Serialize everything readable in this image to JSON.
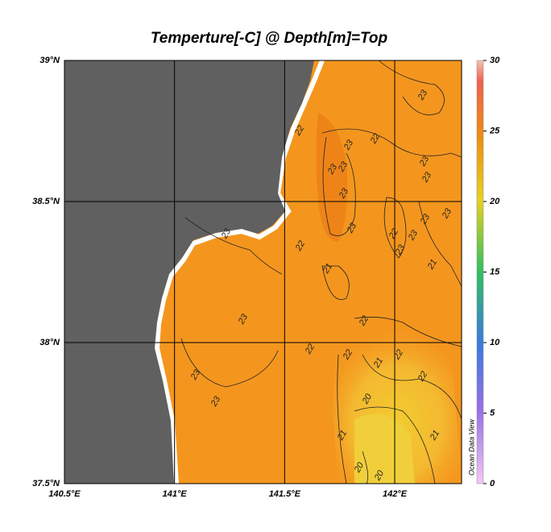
{
  "title": "Temperture[-C] @ Depth[m]=Top",
  "longitude_ticks": [
    {
      "value": 140.5,
      "label": "140.5°E"
    },
    {
      "value": 141,
      "label": "141°E"
    },
    {
      "value": 141.5,
      "label": "141.5°E"
    },
    {
      "value": 142,
      "label": "142°E"
    }
  ],
  "latitude_ticks": [
    {
      "value": 39,
      "label": "39°N"
    },
    {
      "value": 38.5,
      "label": "38.5°N"
    },
    {
      "value": 38,
      "label": "38°N"
    },
    {
      "value": 37.5,
      "label": "37.5°N"
    }
  ],
  "colorbar": {
    "range": [
      0,
      30
    ],
    "ticks": [
      0,
      5,
      10,
      15,
      20,
      25,
      30
    ]
  },
  "contour_labels": [
    23,
    22,
    23,
    22,
    23,
    23,
    23,
    23,
    23,
    23,
    23,
    23,
    22,
    23,
    23,
    23,
    22,
    21,
    21,
    23,
    22,
    22,
    22,
    21,
    22,
    23,
    22,
    23,
    20,
    21,
    21,
    20,
    20
  ],
  "watermark": "Ocean Data View"
}
